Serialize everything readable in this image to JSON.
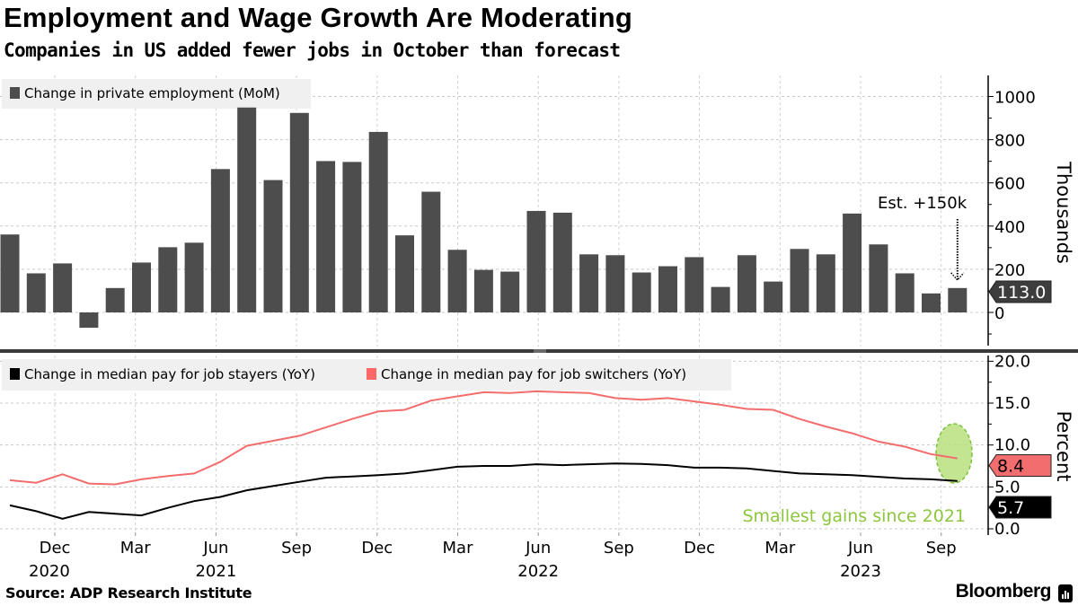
{
  "header": {
    "title": "Employment and Wage Growth Are Moderating",
    "subtitle": "Companies in US added fewer jobs in October than forecast"
  },
  "footer": {
    "source": "Source: ADP Research Institute",
    "brand": "Bloomberg"
  },
  "chart_data": [
    {
      "type": "bar",
      "legend": "Change in private employment (MoM)",
      "ylabel": "Thousands",
      "ylim": [
        -150,
        1050
      ],
      "yticks": [
        "0",
        "200",
        "400",
        "600",
        "800",
        "1000"
      ],
      "ytick_values": [
        0,
        200,
        400,
        600,
        800,
        1000
      ],
      "start": "2020-10",
      "values": [
        361,
        181,
        227,
        -71,
        113,
        231,
        302,
        323,
        664,
        949,
        613,
        924,
        701,
        697,
        836,
        357,
        559,
        290,
        197,
        189,
        470,
        462,
        269,
        265,
        185,
        214,
        256,
        118,
        265,
        143,
        294,
        269,
        458,
        315,
        181,
        88,
        113
      ],
      "last_value_label": "113.0",
      "annotation": "Est. +150k",
      "annotation_value": 150,
      "color": "#4d4d4d"
    },
    {
      "type": "line",
      "ylabel": "Percent",
      "ylim": [
        -1,
        20.5
      ],
      "yticks": [
        "0.0",
        "5.0",
        "10.0",
        "15.0",
        "20.0"
      ],
      "ytick_values": [
        0,
        5,
        10,
        15,
        20
      ],
      "start": "2020-10",
      "series": [
        {
          "name": "Change in median pay for job stayers (YoY)",
          "color": "#000000",
          "values": [
            2.8,
            2.1,
            1.2,
            2.0,
            1.8,
            1.6,
            2.5,
            3.3,
            3.8,
            4.6,
            5.1,
            5.6,
            6.1,
            6.25,
            6.4,
            6.6,
            7.0,
            7.4,
            7.5,
            7.5,
            7.7,
            7.6,
            7.7,
            7.8,
            7.75,
            7.6,
            7.3,
            7.3,
            7.2,
            6.9,
            6.6,
            6.5,
            6.4,
            6.2,
            6.0,
            5.9,
            5.7
          ],
          "last_value_label": "5.7"
        },
        {
          "name": "Change in median pay for job switchers (YoY)",
          "color": "#f26d6d",
          "values": [
            5.8,
            5.5,
            6.5,
            5.4,
            5.3,
            5.9,
            6.3,
            6.6,
            8.0,
            9.9,
            10.5,
            11.1,
            12.1,
            13.1,
            14.0,
            14.2,
            15.3,
            15.8,
            16.3,
            16.2,
            16.4,
            16.3,
            16.2,
            15.6,
            15.4,
            15.6,
            15.2,
            14.8,
            14.3,
            14.2,
            13.1,
            12.2,
            11.4,
            10.4,
            9.8,
            8.9,
            8.4
          ],
          "last_value_label": "8.4"
        }
      ],
      "annotation": "Smallest gains since 2021",
      "annotation_color": "#8cc63f"
    }
  ],
  "x_axis": {
    "ticks": [
      {
        "month": "Dec",
        "year": "2020",
        "index": 2
      },
      {
        "month": "Mar",
        "year": "",
        "index": 5
      },
      {
        "month": "Jun",
        "year": "2021",
        "index": 8
      },
      {
        "month": "Sep",
        "year": "",
        "index": 11
      },
      {
        "month": "Dec",
        "year": "",
        "index": 14
      },
      {
        "month": "Mar",
        "year": "",
        "index": 17
      },
      {
        "month": "Jun",
        "year": "2022",
        "index": 20
      },
      {
        "month": "Sep",
        "year": "",
        "index": 23
      },
      {
        "month": "Dec",
        "year": "",
        "index": 26
      },
      {
        "month": "Mar",
        "year": "",
        "index": 29
      },
      {
        "month": "Jun",
        "year": "2023",
        "index": 32
      },
      {
        "month": "Sep",
        "year": "",
        "index": 35
      }
    ]
  }
}
